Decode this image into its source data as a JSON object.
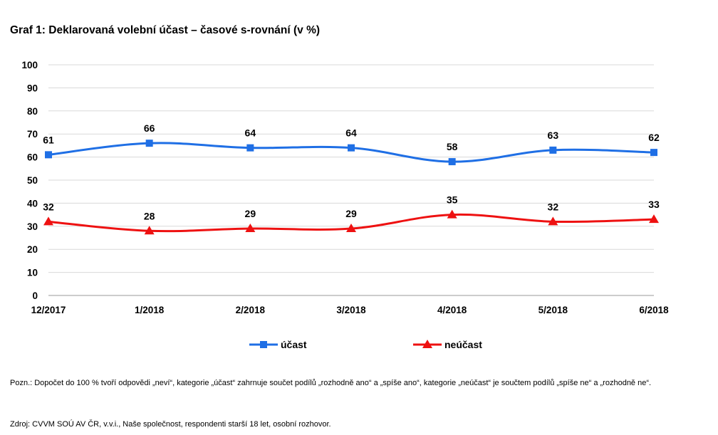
{
  "title": "Graf 1: Deklarovaná volební účast – časové s-rovnání (v %)",
  "note": "Pozn.: Dopočet do 100 % tvoří odpovědi „neví“, kategorie „účast“ zahrnuje součet podílů „rozhodně ano“ a „spíše ano“, kategorie „neúčast“ je součtem podílů „spíše ne“ a „rozhodně ne“.",
  "source": "Zdroj: CVVM SOÚ AV ČR, v.v.i., Naše společnost, respondenti starší 18 let, osobní rozhovor.",
  "chart_data": {
    "type": "line",
    "title": "Graf 1: Deklarovaná volební účast – časové s-rovnání (v %)",
    "categories": [
      "12/2017",
      "1/2018",
      "2/2018",
      "3/2018",
      "4/2018",
      "5/2018",
      "6/2018"
    ],
    "ylim": [
      0,
      100
    ],
    "yticks": [
      0,
      10,
      20,
      30,
      40,
      50,
      60,
      70,
      80,
      90,
      100
    ],
    "grid": true,
    "legend_position": "bottom",
    "series": [
      {
        "name": "účast",
        "values": [
          61,
          66,
          64,
          64,
          58,
          63,
          62
        ],
        "color": "#1f6fe5",
        "marker": "square"
      },
      {
        "name": "neúčast",
        "values": [
          32,
          28,
          29,
          29,
          35,
          32,
          33
        ],
        "color": "#ee1111",
        "marker": "triangle"
      }
    ]
  }
}
